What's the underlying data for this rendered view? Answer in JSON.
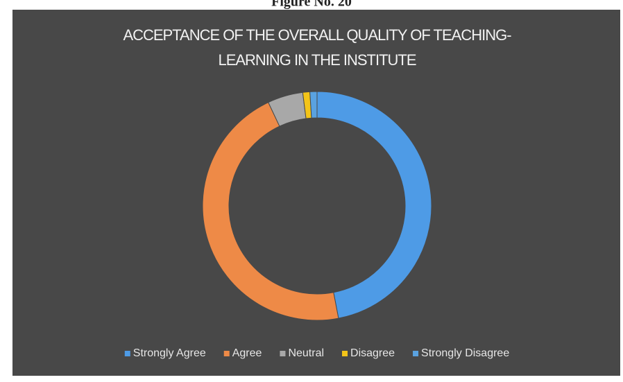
{
  "figure_label": "Figure No. 20",
  "chart_data": {
    "type": "donut",
    "title_lines": [
      "ACCEPTANCE OF THE OVERALL QUALITY OF TEACHING-",
      "LEARNING IN THE INSTITUTE"
    ],
    "categories": [
      "Strongly Agree",
      "Agree",
      "Neutral",
      "Disagree",
      "Strongly Disagree"
    ],
    "values": [
      47,
      46,
      5,
      1,
      1
    ],
    "colors": [
      "#4e9be6",
      "#ee8a47",
      "#a8a8a8",
      "#f3c419",
      "#5aa2e0"
    ],
    "legend": "bottom"
  }
}
